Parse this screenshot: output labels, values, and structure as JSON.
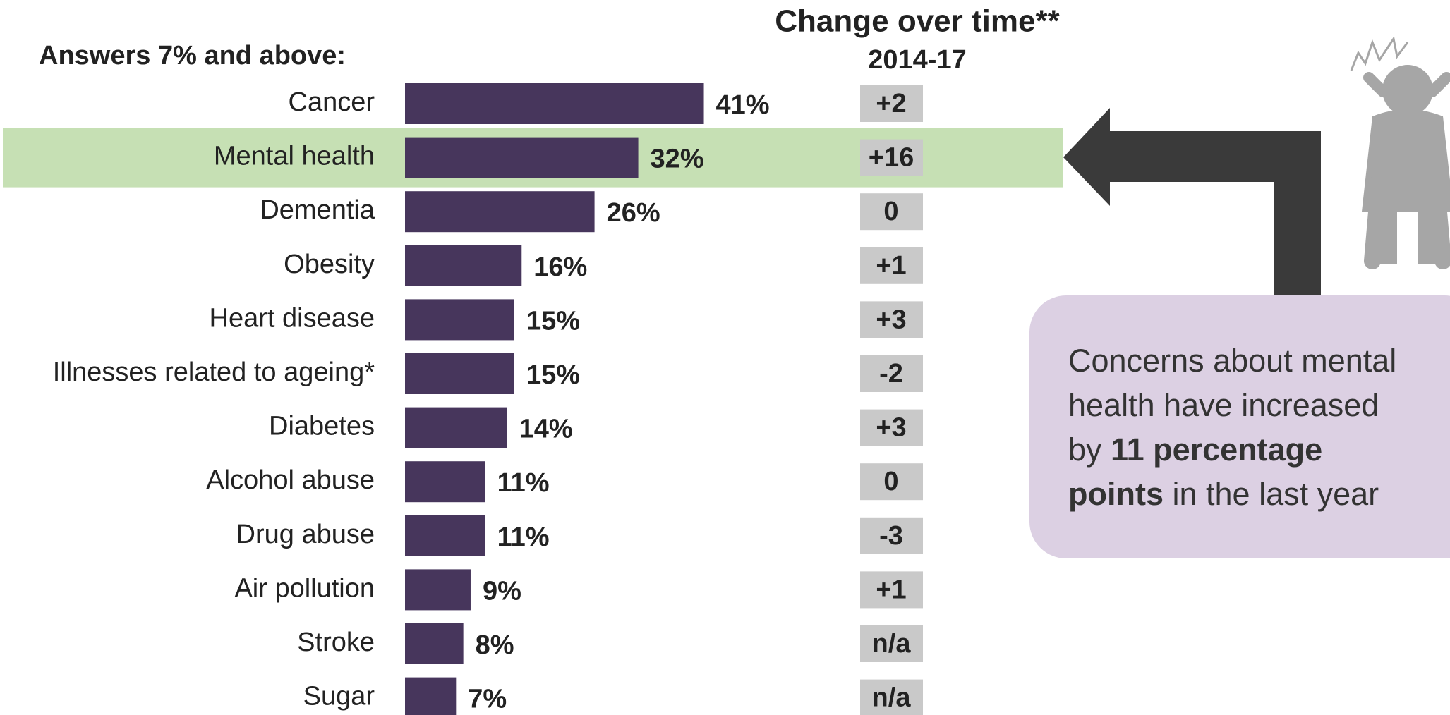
{
  "chart_data": {
    "type": "bar",
    "orientation": "horizontal",
    "label": "Answers 7% and above:",
    "categories": [
      "Cancer",
      "Mental health",
      "Dementia",
      "Obesity",
      "Heart disease",
      "Illnesses related to ageing*",
      "Diabetes",
      "Alcohol abuse",
      "Drug abuse",
      "Air pollution",
      "Stroke",
      "Sugar"
    ],
    "values": [
      41,
      32,
      26,
      16,
      15,
      15,
      14,
      11,
      11,
      9,
      8,
      7
    ],
    "value_labels": [
      "41%",
      "32%",
      "26%",
      "16%",
      "15%",
      "15%",
      "14%",
      "11%",
      "11%",
      "9%",
      "8%",
      "7%"
    ],
    "color": "#47365c",
    "highlight": {
      "index": 1,
      "color": "#c6e0b4"
    },
    "change": {
      "title": "Change over time**",
      "subtitle": "2014-17",
      "values": [
        2,
        16,
        0,
        1,
        3,
        -2,
        3,
        0,
        -3,
        1,
        null,
        null
      ],
      "value_labels": [
        "+2",
        "+16",
        "0",
        "+1",
        "+3",
        "-2",
        "+3",
        "0",
        "-3",
        "+1",
        "n/a",
        "n/a"
      ],
      "color": "#c9c9c9"
    },
    "annotation": [
      "Concerns about mental",
      "health have increased",
      "by ",
      "11 percentage",
      "points",
      " in the last year"
    ]
  }
}
